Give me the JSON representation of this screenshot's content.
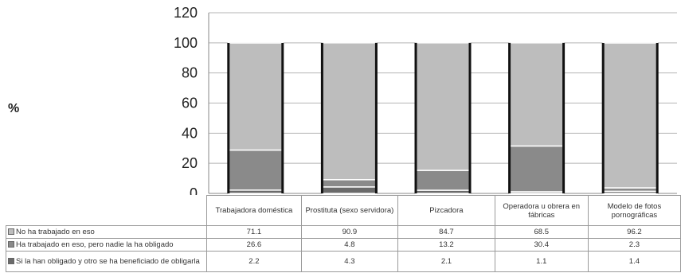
{
  "chart_data": {
    "type": "bar",
    "stacked": true,
    "ylabel": "%",
    "ylim": [
      0,
      120
    ],
    "yticks": [
      0,
      20,
      40,
      60,
      80,
      100,
      120
    ],
    "grid": true,
    "legend_placement": "data-table-left",
    "categories": [
      "Trabajadora doméstica",
      "Prostituta (sexo servidora)",
      "Pizcadora",
      "Operadora u obrera en fábricas",
      "Modelo de fotos pornográficas"
    ],
    "series": [
      {
        "name": "No ha trabajado en eso",
        "color": "#bdbdbd",
        "values": [
          71.1,
          90.9,
          84.7,
          68.5,
          96.2
        ]
      },
      {
        "name": "Ha trabajado en eso, pero nadie la ha obligado",
        "color": "#8a8a8a",
        "values": [
          26.6,
          4.8,
          13.2,
          30.4,
          2.3
        ]
      },
      {
        "name": "Si la han obligado y otro se ha beneficiado de obligarla",
        "color": "#6a6a6a",
        "values": [
          2.2,
          4.3,
          2.1,
          1.1,
          1.4
        ]
      }
    ]
  }
}
